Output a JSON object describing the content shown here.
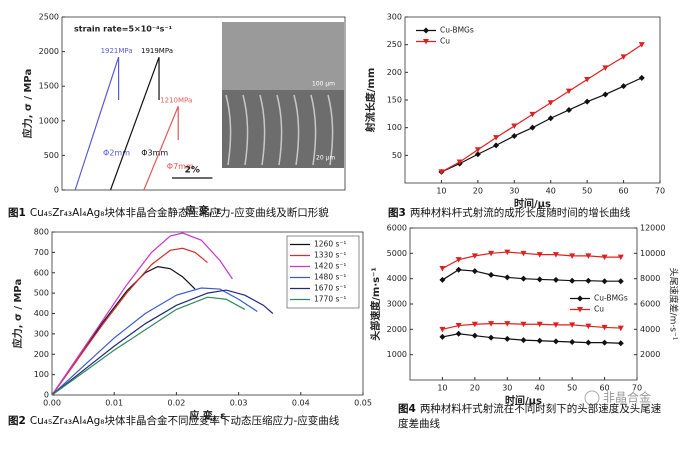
{
  "chart_data": [
    {
      "type": "line",
      "caption_label": "图1",
      "caption": "Cu₄₅Zr₄₃Al₄Ag₈块体非晶合金静态压缩应力-应变曲线及断口形貌",
      "ylabel": "应力, σ / MPa",
      "xlabel": "应 变, ε",
      "xlim": [
        0,
        14
      ],
      "ylim": [
        0,
        2500
      ],
      "yticks": [
        0,
        500,
        1000,
        1500,
        2000,
        2500
      ],
      "annotations": [
        "strain rate=5×10⁻⁴s⁻¹"
      ],
      "scale_bar": {
        "value": 2,
        "label": "2%"
      },
      "inset_labels": [
        "100 μm",
        "20 μm"
      ],
      "series": [
        {
          "name": "Φ2mm",
          "color": "#5a5ad8",
          "x": [
            0.65,
            2.8,
            2.8
          ],
          "values": [
            0,
            1921,
            1300
          ],
          "peak_label": "1921MPa"
        },
        {
          "name": "Φ3mm",
          "color": "#111111",
          "x": [
            2.4,
            4.8,
            4.8
          ],
          "values": [
            0,
            1919,
            1300
          ],
          "peak_label": "1919MPa"
        },
        {
          "name": "Φ7mm",
          "color": "#e05a5a",
          "x": [
            4.05,
            5.75,
            5.75
          ],
          "values": [
            0,
            1210,
            720
          ],
          "peak_label": "1210MPa"
        }
      ]
    },
    {
      "type": "line",
      "caption_label": "图3",
      "caption": "两种材料杆式射流的成形长度随时间的增长曲线",
      "ylabel": "射流长度/mm",
      "xlabel": "时间/μs",
      "legend": "upper left",
      "xlim": [
        0,
        70
      ],
      "ylim": [
        0,
        300
      ],
      "xticks": [
        10,
        20,
        30,
        40,
        50,
        60,
        70
      ],
      "yticks": [
        50,
        100,
        150,
        200,
        250,
        300
      ],
      "x": [
        10,
        15,
        20,
        25,
        30,
        35,
        40,
        45,
        50,
        55,
        60,
        65
      ],
      "series": [
        {
          "name": "Cu-BMGs",
          "color": "#111111",
          "marker": "diamond",
          "values": [
            20,
            35,
            52,
            68,
            85,
            100,
            117,
            132,
            147,
            160,
            175,
            190
          ]
        },
        {
          "name": "Cu",
          "color": "#e02020",
          "marker": "triangle",
          "values": [
            20,
            38,
            60,
            82,
            103,
            124,
            145,
            166,
            187,
            208,
            228,
            250
          ]
        }
      ]
    },
    {
      "type": "line",
      "caption_label": "图2",
      "caption": "Cu₄₅Zr₄₃Al₄Ag₈块体非晶合金不同应变率下动态压缩应力-应变曲线",
      "ylabel": "应力, σ / MPa",
      "xlabel": "应 变, ε",
      "legend": "upper right",
      "xlim": [
        0,
        0.05
      ],
      "ylim": [
        0,
        800
      ],
      "xticks": [
        {
          "value": 0,
          "label": "0.00"
        },
        0.01,
        0.02,
        0.03,
        0.04,
        0.05
      ],
      "yticks": [
        0,
        100,
        200,
        300,
        400,
        500,
        600,
        700,
        800
      ],
      "series": [
        {
          "name": "1260 s⁻¹",
          "color": "#111111",
          "x": [
            0,
            0.004,
            0.008,
            0.012,
            0.015,
            0.017,
            0.019,
            0.021,
            0.023
          ],
          "values": [
            0,
            170,
            350,
            510,
            600,
            630,
            620,
            580,
            520
          ]
        },
        {
          "name": "1330 s⁻¹",
          "color": "#d03030",
          "x": [
            0,
            0.004,
            0.008,
            0.012,
            0.016,
            0.019,
            0.021,
            0.023,
            0.025
          ],
          "values": [
            0,
            170,
            340,
            500,
            640,
            710,
            720,
            700,
            650
          ]
        },
        {
          "name": "1420 s⁻¹",
          "color": "#cc33cc",
          "x": [
            0,
            0.004,
            0.008,
            0.012,
            0.016,
            0.019,
            0.021,
            0.024,
            0.027,
            0.029
          ],
          "values": [
            0,
            180,
            360,
            540,
            700,
            780,
            795,
            760,
            660,
            570
          ]
        },
        {
          "name": "1480 s⁻¹",
          "color": "#3b5bd6",
          "x": [
            0,
            0.005,
            0.01,
            0.015,
            0.02,
            0.024,
            0.027,
            0.03,
            0.033
          ],
          "values": [
            0,
            140,
            280,
            400,
            490,
            525,
            520,
            470,
            410
          ]
        },
        {
          "name": "1670 s⁻¹",
          "color": "#1f2a7a",
          "x": [
            0,
            0.005,
            0.01,
            0.015,
            0.02,
            0.025,
            0.028,
            0.031,
            0.034,
            0.0355
          ],
          "values": [
            0,
            120,
            240,
            350,
            440,
            500,
            515,
            490,
            440,
            400
          ]
        },
        {
          "name": "1770 s⁻¹",
          "color": "#2e8b57",
          "x": [
            0,
            0.005,
            0.01,
            0.015,
            0.02,
            0.025,
            0.028,
            0.031
          ],
          "values": [
            0,
            110,
            220,
            320,
            420,
            480,
            470,
            420
          ]
        }
      ]
    },
    {
      "type": "line",
      "caption_label": "图4",
      "caption": "两种材料杆式射流在不同时刻下的头部速度及头尾速度差曲线",
      "ylabel": "头部速度/m·s⁻¹",
      "y2label": "头尾速度差/m·s⁻¹",
      "xlabel": "时间/μs",
      "legend": "center right",
      "xlim": [
        0,
        70
      ],
      "ylim": [
        0,
        6000
      ],
      "y2lim": [
        0,
        12000
      ],
      "xticks": [
        10,
        20,
        30,
        40,
        50,
        60,
        70
      ],
      "yticks": [
        1000,
        2000,
        3000,
        4000,
        5000,
        6000
      ],
      "y2ticks": [
        2000,
        4000,
        6000,
        8000,
        10000,
        12000
      ],
      "x": [
        10,
        15,
        20,
        25,
        30,
        35,
        40,
        45,
        50,
        55,
        60,
        65
      ],
      "series": [
        {
          "name": "Cu-BMGs",
          "color": "#111111",
          "marker": "diamond",
          "values": [
            3950,
            4350,
            4300,
            4150,
            4050,
            4000,
            3970,
            3950,
            3920,
            3920,
            3900,
            3900
          ]
        },
        {
          "name": "Cu",
          "color": "#e02020",
          "marker": "triangle",
          "values": [
            4400,
            4750,
            4900,
            5000,
            5050,
            5000,
            4950,
            4950,
            4900,
            4900,
            4850,
            4850
          ]
        },
        {
          "color": "#111111",
          "marker": "diamond",
          "axis": "y2",
          "values": [
            3400,
            3650,
            3500,
            3350,
            3250,
            3150,
            3100,
            3050,
            3000,
            2950,
            2950,
            2900
          ]
        },
        {
          "color": "#e02020",
          "marker": "triangle",
          "axis": "y2",
          "values": [
            4000,
            4300,
            4400,
            4450,
            4450,
            4400,
            4400,
            4350,
            4350,
            4250,
            4150,
            4100
          ]
        }
      ]
    }
  ],
  "watermark": "非晶合金"
}
